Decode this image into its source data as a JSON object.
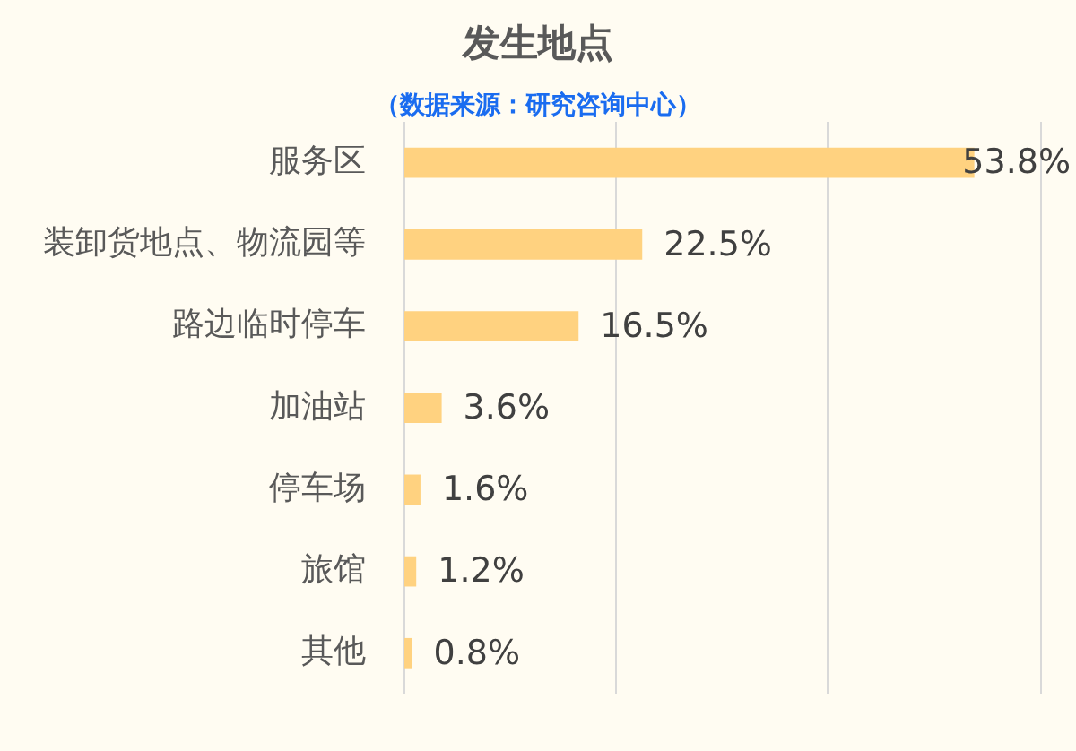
{
  "chart_data": {
    "type": "bar",
    "orientation": "horizontal",
    "title": "发生地点",
    "subtitle": "（数据来源：研究咨询中心）",
    "categories": [
      "服务区",
      "装卸货地点、物流园等",
      "路边临时停车",
      "加油站",
      "停车场",
      "旅馆",
      "其他"
    ],
    "values": [
      53.8,
      22.5,
      16.5,
      3.6,
      1.6,
      1.2,
      0.8
    ],
    "color": "#ffd280",
    "value_labels": [
      "53.8%",
      "22.5%",
      "16.5%",
      "3.6%",
      "1.6%",
      "1.2%",
      "0.8%"
    ],
    "xlim": [
      0,
      60
    ],
    "xticks": [
      {
        "value": 0,
        "label": null
      },
      {
        "value": 20,
        "label": null
      },
      {
        "value": 40,
        "label": null
      },
      {
        "value": 60,
        "label": null
      }
    ],
    "grid": "x",
    "tick_labels": "y"
  }
}
